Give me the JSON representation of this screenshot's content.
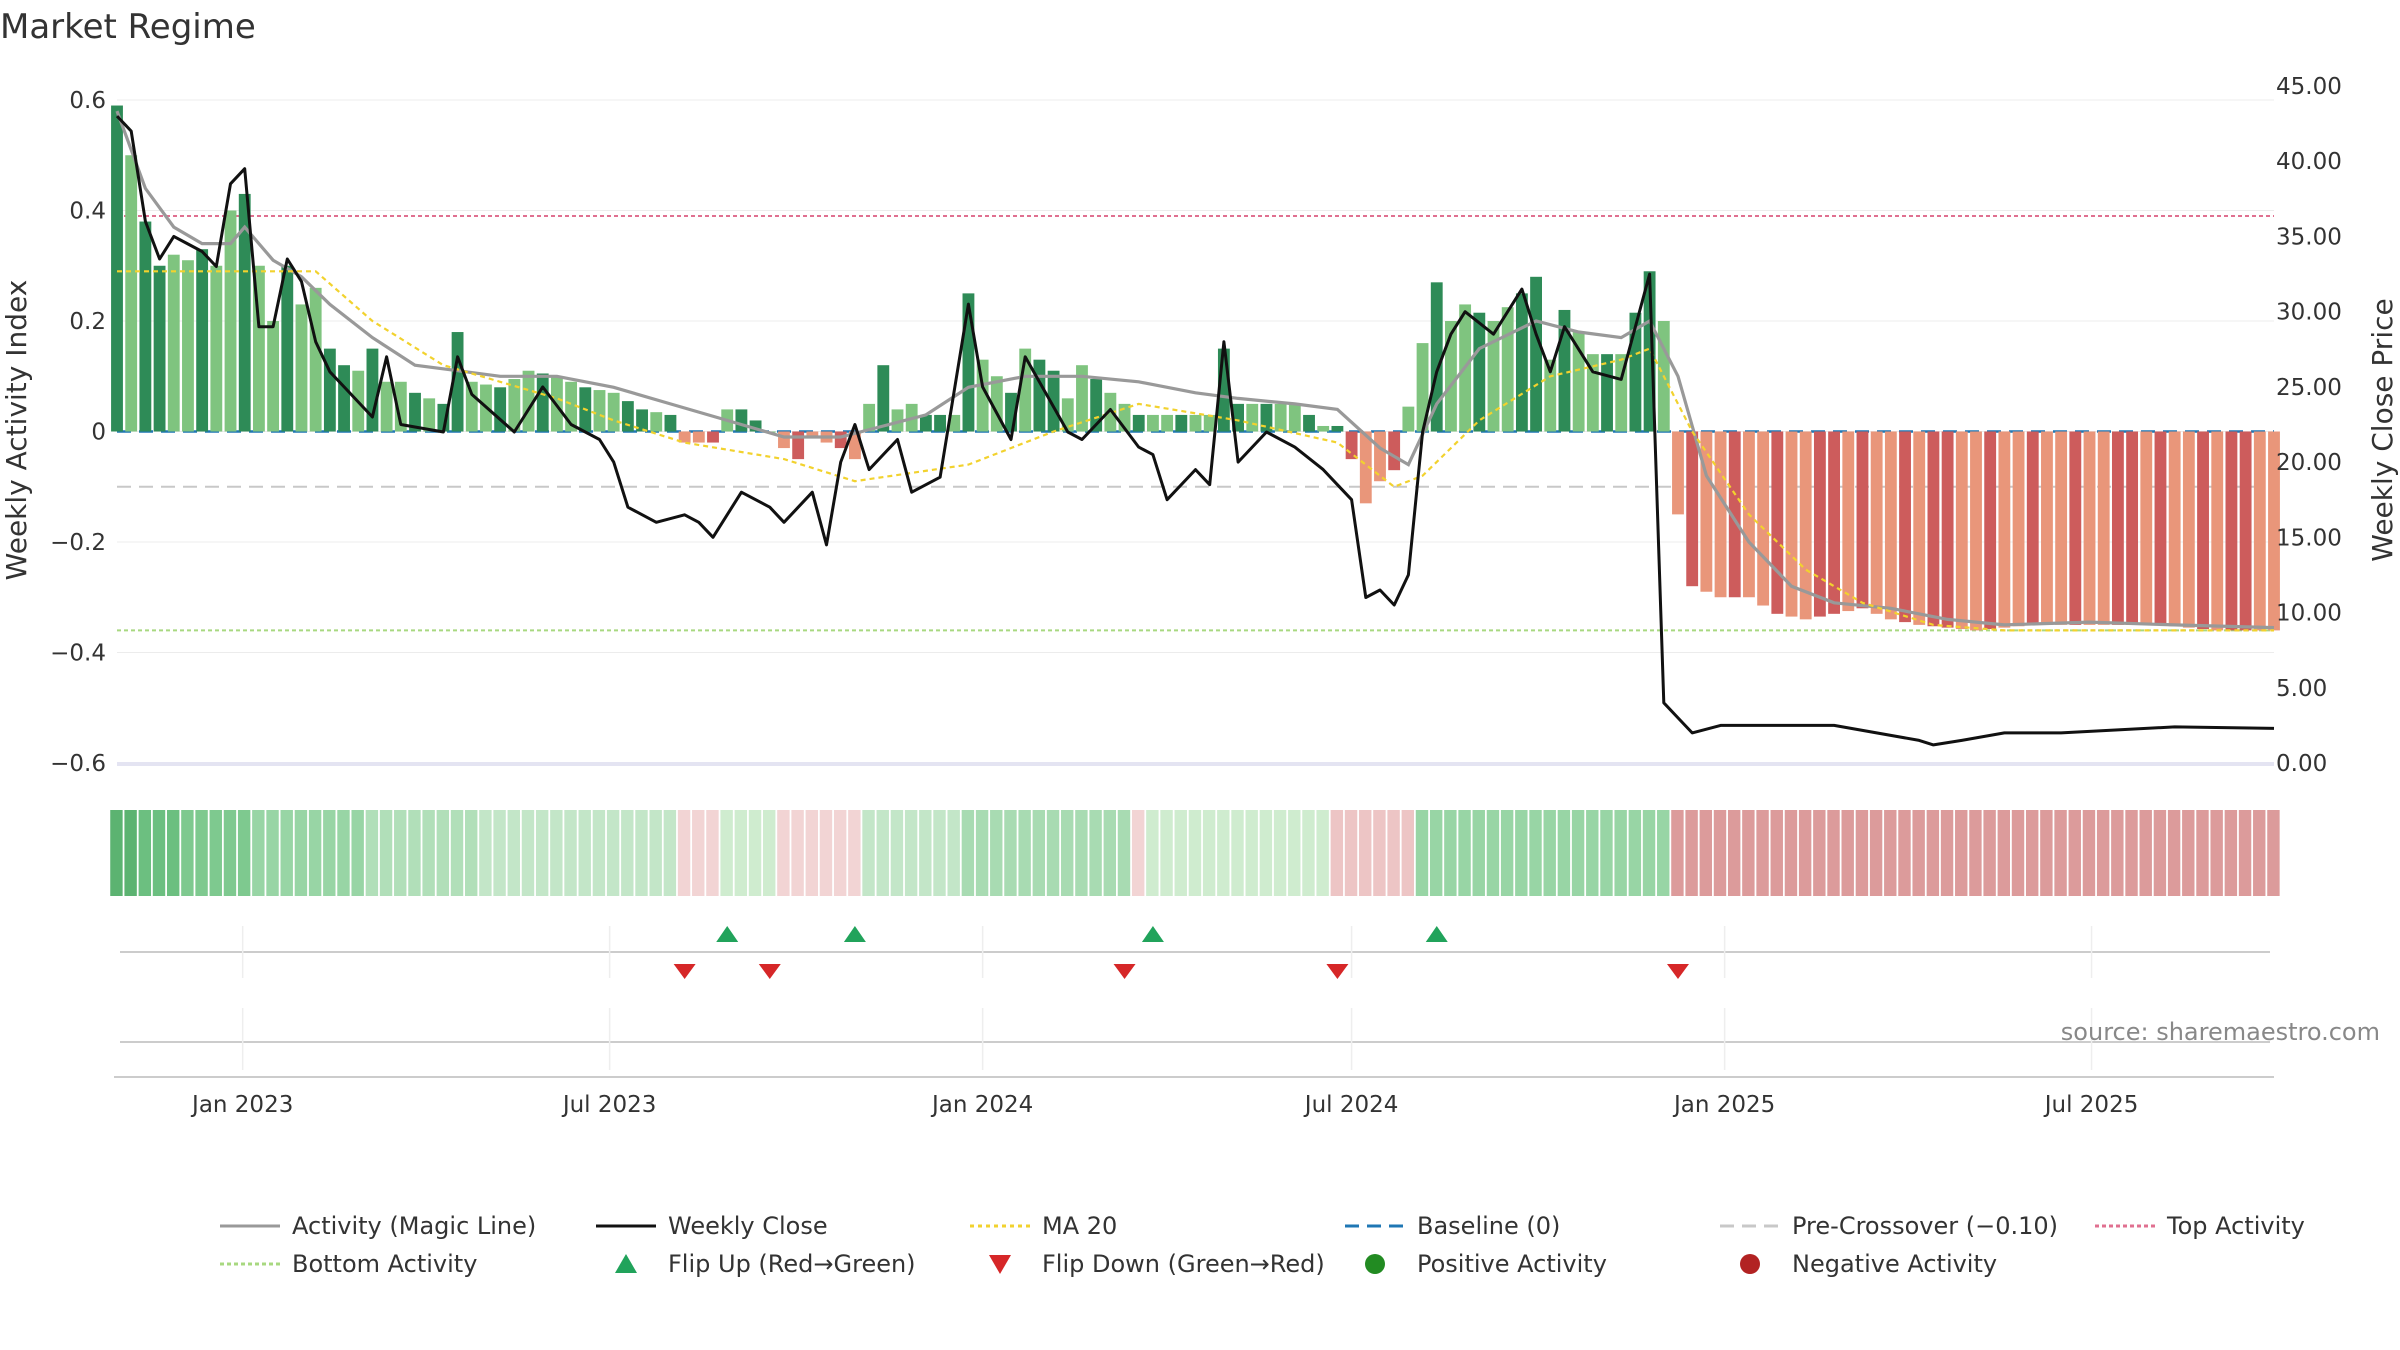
{
  "chart_data": {
    "type": "bar",
    "title": "Market Regime",
    "ylabel_left": "Weekly Activity Index",
    "ylabel_right": "Weekly Close Price",
    "ylim_left": [
      -0.6,
      0.6
    ],
    "ylim_right": [
      0,
      45
    ],
    "y_ticks_left": [
      "0.6",
      "0.4",
      "0.2",
      "0",
      "−0.2",
      "−0.4",
      "−0.6"
    ],
    "y_ticks_right": [
      "45.00",
      "40.00",
      "35.00",
      "30.00",
      "25.00",
      "20.00",
      "15.00",
      "10.00",
      "5.00",
      "0.00"
    ],
    "x_tick_labels": [
      "Jan 2023",
      "Jul 2023",
      "Jan 2024",
      "Jul 2024",
      "Jan 2025",
      "Jul 2025"
    ],
    "date_range": [
      "2022-10-31",
      "2025-09-29"
    ],
    "reference_lines": {
      "top_activity": 0.39,
      "bottom_activity": -0.36,
      "baseline": 0,
      "pre_crossover": -0.1
    },
    "activity_anchors": [
      [
        "2022-10-31",
        0.59
      ],
      [
        "2022-11-07",
        0.5
      ],
      [
        "2022-11-14",
        0.38
      ],
      [
        "2022-11-21",
        0.3
      ],
      [
        "2022-11-28",
        0.32
      ],
      [
        "2022-12-05",
        0.31
      ],
      [
        "2022-12-12",
        0.33
      ],
      [
        "2022-12-19",
        0.3
      ],
      [
        "2022-12-26",
        0.4
      ],
      [
        "2023-01-02",
        0.43
      ],
      [
        "2023-01-09",
        0.3
      ],
      [
        "2023-01-16",
        0.2
      ],
      [
        "2023-01-23",
        0.3
      ],
      [
        "2023-01-30",
        0.23
      ],
      [
        "2023-02-06",
        0.26
      ],
      [
        "2023-02-13",
        0.15
      ],
      [
        "2023-02-20",
        0.12
      ],
      [
        "2023-02-27",
        0.11
      ],
      [
        "2023-03-06",
        0.15
      ],
      [
        "2023-03-13",
        0.09
      ],
      [
        "2023-03-20",
        0.09
      ],
      [
        "2023-03-27",
        0.07
      ],
      [
        "2023-04-10",
        0.05
      ],
      [
        "2023-04-17",
        0.18
      ],
      [
        "2023-04-24",
        0.09
      ],
      [
        "2023-05-08",
        0.08
      ],
      [
        "2023-05-22",
        0.11
      ],
      [
        "2023-06-05",
        0.1
      ],
      [
        "2023-06-19",
        0.08
      ],
      [
        "2023-07-03",
        0.07
      ],
      [
        "2023-07-17",
        0.04
      ],
      [
        "2023-07-31",
        0.03
      ],
      [
        "2023-08-07",
        -0.02
      ],
      [
        "2023-08-21",
        -0.02
      ],
      [
        "2023-08-28",
        0.04
      ],
      [
        "2023-09-04",
        0.04
      ],
      [
        "2023-09-11",
        0.02
      ],
      [
        "2023-09-18",
        0.0
      ],
      [
        "2023-09-25",
        -0.03
      ],
      [
        "2023-10-02",
        -0.05
      ],
      [
        "2023-10-09",
        -0.01
      ],
      [
        "2023-10-23",
        -0.03
      ],
      [
        "2023-10-30",
        -0.05
      ],
      [
        "2023-11-06",
        0.05
      ],
      [
        "2023-11-13",
        0.12
      ],
      [
        "2023-11-20",
        0.04
      ],
      [
        "2023-11-27",
        0.05
      ],
      [
        "2023-12-04",
        0.03
      ],
      [
        "2023-12-18",
        0.03
      ],
      [
        "2023-12-25",
        0.25
      ],
      [
        "2024-01-01",
        0.13
      ],
      [
        "2024-01-15",
        0.07
      ],
      [
        "2024-01-22",
        0.15
      ],
      [
        "2024-02-05",
        0.11
      ],
      [
        "2024-02-12",
        0.06
      ],
      [
        "2024-02-19",
        0.12
      ],
      [
        "2024-03-04",
        0.07
      ],
      [
        "2024-03-18",
        0.03
      ],
      [
        "2024-04-01",
        0.03
      ],
      [
        "2024-04-15",
        0.03
      ],
      [
        "2024-04-22",
        0.03
      ],
      [
        "2024-04-29",
        0.15
      ],
      [
        "2024-05-06",
        0.05
      ],
      [
        "2024-05-20",
        0.05
      ],
      [
        "2024-06-03",
        0.05
      ],
      [
        "2024-06-17",
        0.01
      ],
      [
        "2024-06-24",
        0.01
      ],
      [
        "2024-07-01",
        -0.05
      ],
      [
        "2024-07-08",
        -0.13
      ],
      [
        "2024-07-15",
        -0.09
      ],
      [
        "2024-07-22",
        -0.07
      ],
      [
        "2024-08-05",
        0.16
      ],
      [
        "2024-08-12",
        0.27
      ],
      [
        "2024-08-19",
        0.2
      ],
      [
        "2024-08-26",
        0.23
      ],
      [
        "2024-09-09",
        0.2
      ],
      [
        "2024-09-23",
        0.25
      ],
      [
        "2024-09-30",
        0.28
      ],
      [
        "2024-10-07",
        0.13
      ],
      [
        "2024-10-14",
        0.22
      ],
      [
        "2024-10-28",
        0.14
      ],
      [
        "2024-11-11",
        0.14
      ],
      [
        "2024-11-25",
        0.29
      ],
      [
        "2024-12-02",
        0.2
      ],
      [
        "2024-12-09",
        -0.15
      ],
      [
        "2024-12-16",
        -0.28
      ],
      [
        "2024-12-30",
        -0.3
      ],
      [
        "2025-01-13",
        -0.3
      ],
      [
        "2025-01-27",
        -0.33
      ],
      [
        "2025-02-10",
        -0.34
      ],
      [
        "2025-02-24",
        -0.33
      ],
      [
        "2025-03-10",
        -0.32
      ],
      [
        "2025-03-24",
        -0.34
      ],
      [
        "2025-04-07",
        -0.35
      ],
      [
        "2025-05-05",
        -0.36
      ],
      [
        "2025-06-02",
        -0.35
      ],
      [
        "2025-07-07",
        -0.35
      ],
      [
        "2025-08-04",
        -0.35
      ],
      [
        "2025-09-01",
        -0.36
      ],
      [
        "2025-09-29",
        -0.36
      ]
    ],
    "close_anchors": [
      [
        "2022-10-31",
        43.0
      ],
      [
        "2022-11-07",
        42.0
      ],
      [
        "2022-11-14",
        36.0
      ],
      [
        "2022-11-21",
        33.5
      ],
      [
        "2022-11-28",
        35.0
      ],
      [
        "2022-12-05",
        34.5
      ],
      [
        "2022-12-12",
        34.0
      ],
      [
        "2022-12-19",
        33.0
      ],
      [
        "2022-12-26",
        38.5
      ],
      [
        "2023-01-02",
        39.5
      ],
      [
        "2023-01-09",
        29.0
      ],
      [
        "2023-01-16",
        29.0
      ],
      [
        "2023-01-23",
        33.5
      ],
      [
        "2023-01-30",
        32.0
      ],
      [
        "2023-02-06",
        28.0
      ],
      [
        "2023-02-13",
        26.0
      ],
      [
        "2023-02-20",
        25.0
      ],
      [
        "2023-03-06",
        23.0
      ],
      [
        "2023-03-13",
        27.0
      ],
      [
        "2023-03-20",
        22.5
      ],
      [
        "2023-04-10",
        22.0
      ],
      [
        "2023-04-17",
        27.0
      ],
      [
        "2023-04-24",
        24.5
      ],
      [
        "2023-05-15",
        22.0
      ],
      [
        "2023-05-29",
        25.0
      ],
      [
        "2023-06-12",
        22.5
      ],
      [
        "2023-06-26",
        21.5
      ],
      [
        "2023-07-03",
        20.0
      ],
      [
        "2023-07-10",
        17.0
      ],
      [
        "2023-07-24",
        16.0
      ],
      [
        "2023-08-07",
        16.5
      ],
      [
        "2023-08-14",
        16.0
      ],
      [
        "2023-08-21",
        15.0
      ],
      [
        "2023-09-04",
        18.0
      ],
      [
        "2023-09-18",
        17.0
      ],
      [
        "2023-09-25",
        16.0
      ],
      [
        "2023-10-02",
        17.0
      ],
      [
        "2023-10-09",
        18.0
      ],
      [
        "2023-10-16",
        14.5
      ],
      [
        "2023-10-23",
        20.0
      ],
      [
        "2023-10-30",
        22.5
      ],
      [
        "2023-11-06",
        19.5
      ],
      [
        "2023-11-20",
        21.5
      ],
      [
        "2023-11-27",
        18.0
      ],
      [
        "2023-12-11",
        19.0
      ],
      [
        "2023-12-25",
        30.5
      ],
      [
        "2024-01-01",
        25.0
      ],
      [
        "2024-01-15",
        21.5
      ],
      [
        "2024-01-22",
        27.0
      ],
      [
        "2024-02-12",
        22.0
      ],
      [
        "2024-02-19",
        21.5
      ],
      [
        "2024-03-04",
        23.5
      ],
      [
        "2024-03-18",
        21.0
      ],
      [
        "2024-03-25",
        20.5
      ],
      [
        "2024-04-01",
        17.5
      ],
      [
        "2024-04-15",
        19.5
      ],
      [
        "2024-04-22",
        18.5
      ],
      [
        "2024-04-29",
        28.0
      ],
      [
        "2024-05-06",
        20.0
      ],
      [
        "2024-05-20",
        22.0
      ],
      [
        "2024-06-03",
        21.0
      ],
      [
        "2024-06-17",
        19.5
      ],
      [
        "2024-06-24",
        18.5
      ],
      [
        "2024-07-01",
        17.5
      ],
      [
        "2024-07-08",
        11.0
      ],
      [
        "2024-07-15",
        11.5
      ],
      [
        "2024-07-22",
        10.5
      ],
      [
        "2024-07-29",
        12.5
      ],
      [
        "2024-08-05",
        22.0
      ],
      [
        "2024-08-12",
        26.0
      ],
      [
        "2024-08-19",
        28.5
      ],
      [
        "2024-08-26",
        30.0
      ],
      [
        "2024-09-09",
        28.5
      ],
      [
        "2024-09-23",
        31.5
      ],
      [
        "2024-09-30",
        28.5
      ],
      [
        "2024-10-07",
        26.0
      ],
      [
        "2024-10-14",
        29.0
      ],
      [
        "2024-10-28",
        26.0
      ],
      [
        "2024-11-11",
        25.5
      ],
      [
        "2024-11-25",
        32.5
      ],
      [
        "2024-12-02",
        4.0
      ],
      [
        "2024-12-09",
        3.0
      ],
      [
        "2024-12-16",
        2.0
      ],
      [
        "2024-12-30",
        2.5
      ],
      [
        "2025-02-24",
        2.5
      ],
      [
        "2025-04-07",
        1.5
      ],
      [
        "2025-04-14",
        1.2
      ],
      [
        "2025-04-28",
        1.5
      ],
      [
        "2025-05-19",
        2.0
      ],
      [
        "2025-06-16",
        2.0
      ],
      [
        "2025-07-14",
        2.2
      ],
      [
        "2025-08-11",
        2.4
      ],
      [
        "2025-09-29",
        2.3
      ]
    ],
    "magic_line_anchors": [
      [
        "2022-10-31",
        0.58
      ],
      [
        "2022-11-14",
        0.44
      ],
      [
        "2022-11-28",
        0.37
      ],
      [
        "2022-12-12",
        0.34
      ],
      [
        "2022-12-26",
        0.34
      ],
      [
        "2023-01-02",
        0.37
      ],
      [
        "2023-01-16",
        0.31
      ],
      [
        "2023-01-30",
        0.28
      ],
      [
        "2023-02-13",
        0.23
      ],
      [
        "2023-03-06",
        0.17
      ],
      [
        "2023-03-27",
        0.12
      ],
      [
        "2023-04-17",
        0.11
      ],
      [
        "2023-05-08",
        0.1
      ],
      [
        "2023-06-05",
        0.1
      ],
      [
        "2023-07-03",
        0.08
      ],
      [
        "2023-07-31",
        0.05
      ],
      [
        "2023-08-28",
        0.02
      ],
      [
        "2023-09-25",
        -0.01
      ],
      [
        "2023-10-23",
        -0.01
      ],
      [
        "2023-11-13",
        0.01
      ],
      [
        "2023-12-04",
        0.03
      ],
      [
        "2023-12-25",
        0.08
      ],
      [
        "2024-01-22",
        0.1
      ],
      [
        "2024-02-19",
        0.1
      ],
      [
        "2024-03-18",
        0.09
      ],
      [
        "2024-04-15",
        0.07
      ],
      [
        "2024-05-06",
        0.06
      ],
      [
        "2024-06-03",
        0.05
      ],
      [
        "2024-06-24",
        0.04
      ],
      [
        "2024-07-15",
        -0.03
      ],
      [
        "2024-07-29",
        -0.06
      ],
      [
        "2024-08-12",
        0.05
      ],
      [
        "2024-09-02",
        0.15
      ],
      [
        "2024-09-30",
        0.2
      ],
      [
        "2024-10-21",
        0.18
      ],
      [
        "2024-11-11",
        0.17
      ],
      [
        "2024-11-25",
        0.2
      ],
      [
        "2024-12-09",
        0.1
      ],
      [
        "2024-12-23",
        -0.08
      ],
      [
        "2025-01-13",
        -0.2
      ],
      [
        "2025-02-03",
        -0.28
      ],
      [
        "2025-02-24",
        -0.31
      ],
      [
        "2025-03-24",
        -0.32
      ],
      [
        "2025-04-21",
        -0.34
      ],
      [
        "2025-05-19",
        -0.35
      ],
      [
        "2025-06-30",
        -0.345
      ],
      [
        "2025-08-11",
        -0.35
      ],
      [
        "2025-09-29",
        -0.355
      ]
    ],
    "ma20_anchors": [
      [
        "2022-10-31",
        0.29
      ],
      [
        "2023-02-06",
        0.29
      ],
      [
        "2023-03-06",
        0.2
      ],
      [
        "2023-04-10",
        0.12
      ],
      [
        "2023-06-05",
        0.06
      ],
      [
        "2023-07-03",
        0.02
      ],
      [
        "2023-08-07",
        -0.02
      ],
      [
        "2023-09-25",
        -0.05
      ],
      [
        "2023-10-30",
        -0.09
      ],
      [
        "2023-12-25",
        -0.06
      ],
      [
        "2024-02-05",
        0.0
      ],
      [
        "2024-03-18",
        0.05
      ],
      [
        "2024-05-06",
        0.02
      ],
      [
        "2024-06-24",
        -0.02
      ],
      [
        "2024-07-22",
        -0.1
      ],
      [
        "2024-08-05",
        -0.08
      ],
      [
        "2024-09-02",
        0.02
      ],
      [
        "2024-10-07",
        0.1
      ],
      [
        "2024-11-11",
        0.13
      ],
      [
        "2024-11-25",
        0.15
      ],
      [
        "2024-12-16",
        0.0
      ],
      [
        "2025-01-13",
        -0.15
      ],
      [
        "2025-02-10",
        -0.25
      ],
      [
        "2025-03-10",
        -0.31
      ],
      [
        "2025-04-14",
        -0.35
      ],
      [
        "2025-05-19",
        -0.36
      ],
      [
        "2025-09-29",
        -0.36
      ]
    ],
    "regime_strip_anchors": [
      [
        "2022-10-31",
        "#5cb371"
      ],
      [
        "2022-11-14",
        "#6cbf80"
      ],
      [
        "2022-12-05",
        "#7ec98f"
      ],
      [
        "2023-01-09",
        "#98d5a5"
      ],
      [
        "2023-03-06",
        "#b1dfb9"
      ],
      [
        "2023-05-01",
        "#c3e6c8"
      ],
      [
        "2023-08-07",
        "#f2d4d4"
      ],
      [
        "2023-08-28",
        "#cfeccf"
      ],
      [
        "2023-09-25",
        "#f2d4d4"
      ],
      [
        "2023-11-06",
        "#c3e6c8"
      ],
      [
        "2023-12-25",
        "#a8dbb2"
      ],
      [
        "2024-03-18",
        "#f2d4d4"
      ],
      [
        "2024-03-25",
        "#cfeccf"
      ],
      [
        "2024-06-24",
        "#edc5c5"
      ],
      [
        "2024-08-05",
        "#98d5a5"
      ],
      [
        "2024-12-09",
        "#dc9b9b"
      ]
    ],
    "flip_up": [
      "2023-08-28",
      "2023-10-30",
      "2024-03-25",
      "2024-08-12"
    ],
    "flip_down": [
      "2023-08-07",
      "2023-09-18",
      "2024-03-11",
      "2024-06-24",
      "2024-12-09"
    ],
    "legend": [
      {
        "label": "Activity (Magic Line)",
        "kind": "line",
        "color": "#999999",
        "dash": ""
      },
      {
        "label": "Weekly Close",
        "kind": "line",
        "color": "#111111",
        "dash": ""
      },
      {
        "label": "MA 20",
        "kind": "line",
        "color": "#f2d22e",
        "dash": "4,4"
      },
      {
        "label": "Baseline (0)",
        "kind": "line",
        "color": "#1f77b4",
        "dash": "14,8"
      },
      {
        "label": "Pre-Crossover (−0.10)",
        "kind": "line",
        "color": "#c8c8c8",
        "dash": "14,8"
      },
      {
        "label": "Top Activity",
        "kind": "line",
        "color": "#e07090",
        "dash": "4,3"
      },
      {
        "label": "Bottom Activity",
        "kind": "line",
        "color": "#a8d880",
        "dash": "4,3"
      },
      {
        "label": "Flip Up (Red→Green)",
        "kind": "tri-up",
        "color": "#21a35b",
        "dash": ""
      },
      {
        "label": "Flip Down (Green→Red)",
        "kind": "tri-down",
        "color": "#d62728",
        "dash": ""
      },
      {
        "label": "Positive Activity",
        "kind": "dot",
        "color": "#228b22",
        "dash": ""
      },
      {
        "label": "Negative Activity",
        "kind": "dot",
        "color": "#b22222",
        "dash": ""
      }
    ],
    "source": "source: sharemaestro.com",
    "colors": {
      "pos_dark": "#2e8b57",
      "pos_light": "#7fc47f",
      "neg_dark": "#cd5c5c",
      "neg_light": "#e9967a",
      "close": "#111111",
      "magic": "#999999",
      "ma": "#f2d22e",
      "baseline": "#1f77b4",
      "precross": "#c8c8c8",
      "top": "#e07090",
      "bottom": "#a8d880",
      "flip_up": "#21a35b",
      "flip_down": "#d62728"
    }
  }
}
